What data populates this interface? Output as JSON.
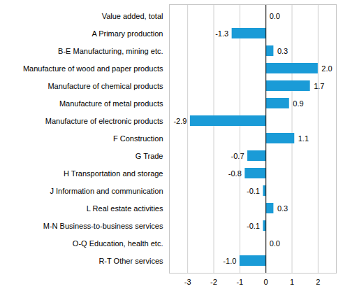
{
  "chart_data": {
    "type": "bar",
    "orientation": "horizontal",
    "categories": [
      "Value added, total",
      "A Primary production",
      "B-E Manufacturing, mining etc.",
      "Manufacture of wood and paper products",
      "Manufacture of chemical products",
      "Manufacture of metal products",
      "Manufacture of electronic products",
      "F Construction",
      "G Trade",
      "H Transportation and storage",
      "J Information and communication",
      "L Real estate activities",
      "M-N Business-to-business services",
      "O-Q Education, health etc.",
      "R-T Other services"
    ],
    "values": [
      0.0,
      -1.3,
      0.3,
      2.0,
      1.7,
      0.9,
      -2.9,
      1.1,
      -0.7,
      -0.8,
      -0.1,
      0.3,
      -0.1,
      0.0,
      -1.0
    ],
    "value_labels": [
      "0.0",
      "-1.3",
      "0.3",
      "2.0",
      "1.7",
      "0.9",
      "-2.9",
      "1.1",
      "-0.7",
      "-0.8",
      "-0.1",
      "0.3",
      "-0.1",
      "0.0",
      "-1.0"
    ],
    "data_labels": true,
    "color": "#1a9bd7",
    "xlim": [
      -3.7,
      2.7
    ],
    "xticks": [
      -3,
      -2,
      -1,
      0,
      1,
      2
    ],
    "grid": true
  }
}
